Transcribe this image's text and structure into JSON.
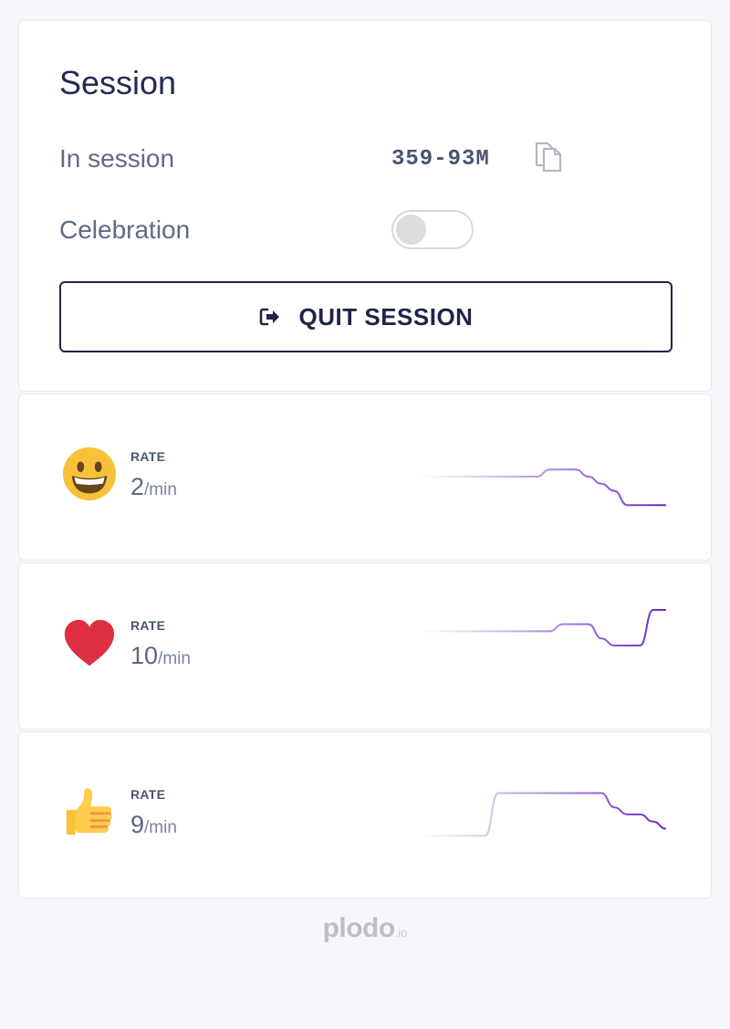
{
  "session": {
    "title": "Session",
    "in_session_label": "In session",
    "code": "359-93M",
    "celebration_label": "Celebration",
    "celebration_enabled": false,
    "quit_label": "QUIT SESSION"
  },
  "rates": [
    {
      "emoji": "grinning-face-icon",
      "caption": "RATE",
      "value": "2",
      "unit": "/min",
      "trend": [
        5,
        5,
        5,
        5,
        5,
        5,
        5,
        5,
        5,
        5,
        6,
        6,
        6,
        5,
        4,
        3,
        1,
        1,
        1,
        1
      ]
    },
    {
      "emoji": "heart-icon",
      "caption": "RATE",
      "value": "10",
      "unit": "/min",
      "trend": [
        7,
        7,
        7,
        7,
        7,
        7,
        7,
        7,
        7,
        7,
        7,
        8,
        8,
        8,
        6,
        5,
        5,
        5,
        10,
        10
      ]
    },
    {
      "emoji": "thumbs-up-icon",
      "caption": "RATE",
      "value": "9",
      "unit": "/min",
      "trend": [
        2,
        2,
        2,
        2,
        2,
        2,
        8,
        8,
        8,
        8,
        8,
        8,
        8,
        8,
        8,
        6,
        5,
        5,
        4,
        3
      ]
    }
  ],
  "footer": {
    "logo": "plodo",
    "logo_suffix": ".io"
  },
  "colors": {
    "accent": "#6a26c2",
    "text_dark": "#1f2547",
    "emoji_yellow": "#f7c23a",
    "heart_red": "#dd2e44"
  }
}
